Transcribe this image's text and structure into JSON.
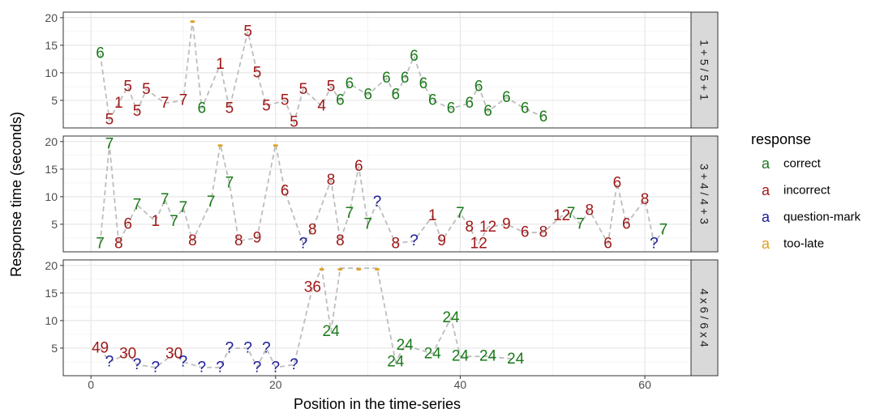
{
  "ylabel": "Response time (seconds)",
  "xlabel": "Position in the time-series",
  "legend": {
    "title": "response",
    "glyph": "a",
    "items": [
      {
        "key": "correct",
        "label": "correct",
        "color": "#1a7a1a"
      },
      {
        "key": "incorrect",
        "label": "incorrect",
        "color": "#a01818"
      },
      {
        "key": "question-mark",
        "label": "question-mark",
        "color": "#1a1a9a"
      },
      {
        "key": "too-late",
        "label": "too-late",
        "color": "#e0a020"
      }
    ]
  },
  "chart_data": {
    "type": "scatter",
    "facet": "problem",
    "xlim": [
      -3,
      65
    ],
    "ylim": [
      0,
      21
    ],
    "x_ticks": [
      "0",
      "20",
      "40",
      "60"
    ],
    "y_ticks": [
      "5",
      "10",
      "15",
      "20"
    ],
    "grid": true,
    "legend_position": "right",
    "panels": [
      {
        "strip": "1 + 5 / 5 + 1",
        "points": [
          {
            "x": 1,
            "y": 13.5,
            "label": "6",
            "r": "correct"
          },
          {
            "x": 2,
            "y": 1.5,
            "label": "5",
            "r": "incorrect"
          },
          {
            "x": 3,
            "y": 4.5,
            "label": "1",
            "r": "incorrect"
          },
          {
            "x": 4,
            "y": 7.5,
            "label": "5",
            "r": "incorrect"
          },
          {
            "x": 5,
            "y": 3,
            "label": "5",
            "r": "incorrect"
          },
          {
            "x": 6,
            "y": 7,
            "label": "5",
            "r": "incorrect"
          },
          {
            "x": 8,
            "y": 4.5,
            "label": "7",
            "r": "incorrect"
          },
          {
            "x": 10,
            "y": 5,
            "label": "7",
            "r": "incorrect"
          },
          {
            "x": 11,
            "y": 19.5,
            "label": "-",
            "r": "too-late"
          },
          {
            "x": 12,
            "y": 3.5,
            "label": "6",
            "r": "correct"
          },
          {
            "x": 14,
            "y": 11.5,
            "label": "1",
            "r": "incorrect"
          },
          {
            "x": 15,
            "y": 3.5,
            "label": "5",
            "r": "incorrect"
          },
          {
            "x": 17,
            "y": 17.5,
            "label": "5",
            "r": "incorrect"
          },
          {
            "x": 18,
            "y": 10,
            "label": "5",
            "r": "incorrect"
          },
          {
            "x": 19,
            "y": 4,
            "label": "5",
            "r": "incorrect"
          },
          {
            "x": 21,
            "y": 5,
            "label": "5",
            "r": "incorrect"
          },
          {
            "x": 22,
            "y": 1,
            "label": "5",
            "r": "incorrect"
          },
          {
            "x": 23,
            "y": 7,
            "label": "5",
            "r": "incorrect"
          },
          {
            "x": 25,
            "y": 4,
            "label": "4",
            "r": "incorrect"
          },
          {
            "x": 26,
            "y": 7.5,
            "label": "5",
            "r": "incorrect"
          },
          {
            "x": 27,
            "y": 5,
            "label": "6",
            "r": "correct"
          },
          {
            "x": 28,
            "y": 8,
            "label": "6",
            "r": "correct"
          },
          {
            "x": 30,
            "y": 6,
            "label": "6",
            "r": "correct"
          },
          {
            "x": 32,
            "y": 9,
            "label": "6",
            "r": "correct"
          },
          {
            "x": 33,
            "y": 6,
            "label": "6",
            "r": "correct"
          },
          {
            "x": 34,
            "y": 9,
            "label": "6",
            "r": "correct"
          },
          {
            "x": 35,
            "y": 13,
            "label": "6",
            "r": "correct"
          },
          {
            "x": 36,
            "y": 8,
            "label": "6",
            "r": "correct"
          },
          {
            "x": 37,
            "y": 5,
            "label": "6",
            "r": "correct"
          },
          {
            "x": 39,
            "y": 3.5,
            "label": "6",
            "r": "correct"
          },
          {
            "x": 41,
            "y": 4.5,
            "label": "6",
            "r": "correct"
          },
          {
            "x": 42,
            "y": 7.5,
            "label": "6",
            "r": "correct"
          },
          {
            "x": 43,
            "y": 3,
            "label": "6",
            "r": "correct"
          },
          {
            "x": 45,
            "y": 5.5,
            "label": "6",
            "r": "correct"
          },
          {
            "x": 47,
            "y": 3.5,
            "label": "6",
            "r": "correct"
          },
          {
            "x": 49,
            "y": 2,
            "label": "6",
            "r": "correct"
          }
        ]
      },
      {
        "strip": "3 + 4 / 4 + 3",
        "points": [
          {
            "x": 1,
            "y": 1.5,
            "label": "7",
            "r": "correct"
          },
          {
            "x": 2,
            "y": 19.5,
            "label": "7",
            "r": "correct"
          },
          {
            "x": 3,
            "y": 1.5,
            "label": "8",
            "r": "incorrect"
          },
          {
            "x": 4,
            "y": 5,
            "label": "6",
            "r": "incorrect"
          },
          {
            "x": 5,
            "y": 8.5,
            "label": "7",
            "r": "correct"
          },
          {
            "x": 7,
            "y": 5.5,
            "label": "1",
            "r": "incorrect"
          },
          {
            "x": 8,
            "y": 9.5,
            "label": "7",
            "r": "correct"
          },
          {
            "x": 9,
            "y": 5.5,
            "label": "7",
            "r": "correct"
          },
          {
            "x": 10,
            "y": 8,
            "label": "7",
            "r": "correct"
          },
          {
            "x": 11,
            "y": 2,
            "label": "8",
            "r": "incorrect"
          },
          {
            "x": 13,
            "y": 9,
            "label": "7",
            "r": "correct"
          },
          {
            "x": 14,
            "y": 19.5,
            "label": "-",
            "r": "too-late"
          },
          {
            "x": 15,
            "y": 12.5,
            "label": "7",
            "r": "correct"
          },
          {
            "x": 16,
            "y": 2,
            "label": "8",
            "r": "incorrect"
          },
          {
            "x": 18,
            "y": 2.5,
            "label": "9",
            "r": "incorrect"
          },
          {
            "x": 20,
            "y": 19.5,
            "label": "-",
            "r": "too-late"
          },
          {
            "x": 21,
            "y": 11,
            "label": "6",
            "r": "incorrect"
          },
          {
            "x": 23,
            "y": 1.5,
            "label": "?",
            "r": "question-mark"
          },
          {
            "x": 24,
            "y": 4,
            "label": "8",
            "r": "incorrect"
          },
          {
            "x": 26,
            "y": 13,
            "label": "8",
            "r": "incorrect"
          },
          {
            "x": 27,
            "y": 2,
            "label": "8",
            "r": "incorrect"
          },
          {
            "x": 28,
            "y": 7,
            "label": "7",
            "r": "correct"
          },
          {
            "x": 29,
            "y": 15.5,
            "label": "6",
            "r": "incorrect"
          },
          {
            "x": 30,
            "y": 5,
            "label": "7",
            "r": "correct"
          },
          {
            "x": 31,
            "y": 9,
            "label": "?",
            "r": "question-mark"
          },
          {
            "x": 33,
            "y": 1.5,
            "label": "8",
            "r": "incorrect"
          },
          {
            "x": 35,
            "y": 2,
            "label": "?",
            "r": "question-mark"
          },
          {
            "x": 37,
            "y": 6.5,
            "label": "1",
            "r": "incorrect"
          },
          {
            "x": 38,
            "y": 2,
            "label": "9",
            "r": "incorrect"
          },
          {
            "x": 40,
            "y": 7,
            "label": "7",
            "r": "correct"
          },
          {
            "x": 41,
            "y": 4.5,
            "label": "8",
            "r": "incorrect"
          },
          {
            "x": 42,
            "y": 1.5,
            "label": "12",
            "r": "incorrect"
          },
          {
            "x": 43,
            "y": 4.5,
            "label": "12",
            "r": "incorrect"
          },
          {
            "x": 45,
            "y": 5,
            "label": "9",
            "r": "incorrect"
          },
          {
            "x": 47,
            "y": 3.5,
            "label": "6",
            "r": "incorrect"
          },
          {
            "x": 49,
            "y": 3.5,
            "label": "8",
            "r": "incorrect"
          },
          {
            "x": 51,
            "y": 6.5,
            "label": "12",
            "r": "incorrect"
          },
          {
            "x": 52,
            "y": 7,
            "label": "7",
            "r": "correct"
          },
          {
            "x": 53,
            "y": 5,
            "label": "7",
            "r": "correct"
          },
          {
            "x": 54,
            "y": 7.5,
            "label": "8",
            "r": "incorrect"
          },
          {
            "x": 56,
            "y": 1.5,
            "label": "6",
            "r": "incorrect"
          },
          {
            "x": 57,
            "y": 12.5,
            "label": "6",
            "r": "incorrect"
          },
          {
            "x": 58,
            "y": 5,
            "label": "6",
            "r": "incorrect"
          },
          {
            "x": 60,
            "y": 9.5,
            "label": "8",
            "r": "incorrect"
          },
          {
            "x": 61,
            "y": 1.5,
            "label": "?",
            "r": "question-mark"
          },
          {
            "x": 62,
            "y": 4,
            "label": "7",
            "r": "correct"
          }
        ]
      },
      {
        "strip": "4 x 6 / 6 x 4",
        "points": [
          {
            "x": 1,
            "y": 5,
            "label": "49",
            "r": "incorrect"
          },
          {
            "x": 2,
            "y": 2.5,
            "label": "?",
            "r": "question-mark"
          },
          {
            "x": 4,
            "y": 4,
            "label": "30",
            "r": "incorrect"
          },
          {
            "x": 5,
            "y": 2,
            "label": "?",
            "r": "question-mark"
          },
          {
            "x": 7,
            "y": 1.5,
            "label": "?",
            "r": "question-mark"
          },
          {
            "x": 9,
            "y": 4,
            "label": "30",
            "r": "incorrect"
          },
          {
            "x": 10,
            "y": 2.5,
            "label": "?",
            "r": "question-mark"
          },
          {
            "x": 12,
            "y": 1.5,
            "label": "?",
            "r": "question-mark"
          },
          {
            "x": 14,
            "y": 1.5,
            "label": "?",
            "r": "question-mark"
          },
          {
            "x": 15,
            "y": 5,
            "label": "?",
            "r": "question-mark"
          },
          {
            "x": 17,
            "y": 5,
            "label": "?",
            "r": "question-mark"
          },
          {
            "x": 18,
            "y": 1.5,
            "label": "?",
            "r": "question-mark"
          },
          {
            "x": 19,
            "y": 5,
            "label": "?",
            "r": "question-mark"
          },
          {
            "x": 20,
            "y": 1.5,
            "label": "?",
            "r": "question-mark"
          },
          {
            "x": 22,
            "y": 2,
            "label": "?",
            "r": "question-mark"
          },
          {
            "x": 25,
            "y": 19.5,
            "label": "-",
            "r": "too-late"
          },
          {
            "x": 24,
            "y": 16,
            "label": "36",
            "r": "incorrect"
          },
          {
            "x": 26,
            "y": 8,
            "label": "24",
            "r": "correct"
          },
          {
            "x": 27,
            "y": 19.5,
            "label": "-",
            "r": "too-late"
          },
          {
            "x": 29,
            "y": 19.5,
            "label": "-",
            "r": "too-late"
          },
          {
            "x": 31,
            "y": 19.5,
            "label": "-",
            "r": "too-late"
          },
          {
            "x": 33,
            "y": 2.5,
            "label": "24",
            "r": "correct"
          },
          {
            "x": 34,
            "y": 5.5,
            "label": "24",
            "r": "correct"
          },
          {
            "x": 37,
            "y": 4,
            "label": "24",
            "r": "correct"
          },
          {
            "x": 39,
            "y": 10.5,
            "label": "24",
            "r": "correct"
          },
          {
            "x": 40,
            "y": 3.5,
            "label": "24",
            "r": "correct"
          },
          {
            "x": 43,
            "y": 3.5,
            "label": "24",
            "r": "correct"
          },
          {
            "x": 46,
            "y": 3,
            "label": "24",
            "r": "correct"
          }
        ]
      }
    ]
  }
}
